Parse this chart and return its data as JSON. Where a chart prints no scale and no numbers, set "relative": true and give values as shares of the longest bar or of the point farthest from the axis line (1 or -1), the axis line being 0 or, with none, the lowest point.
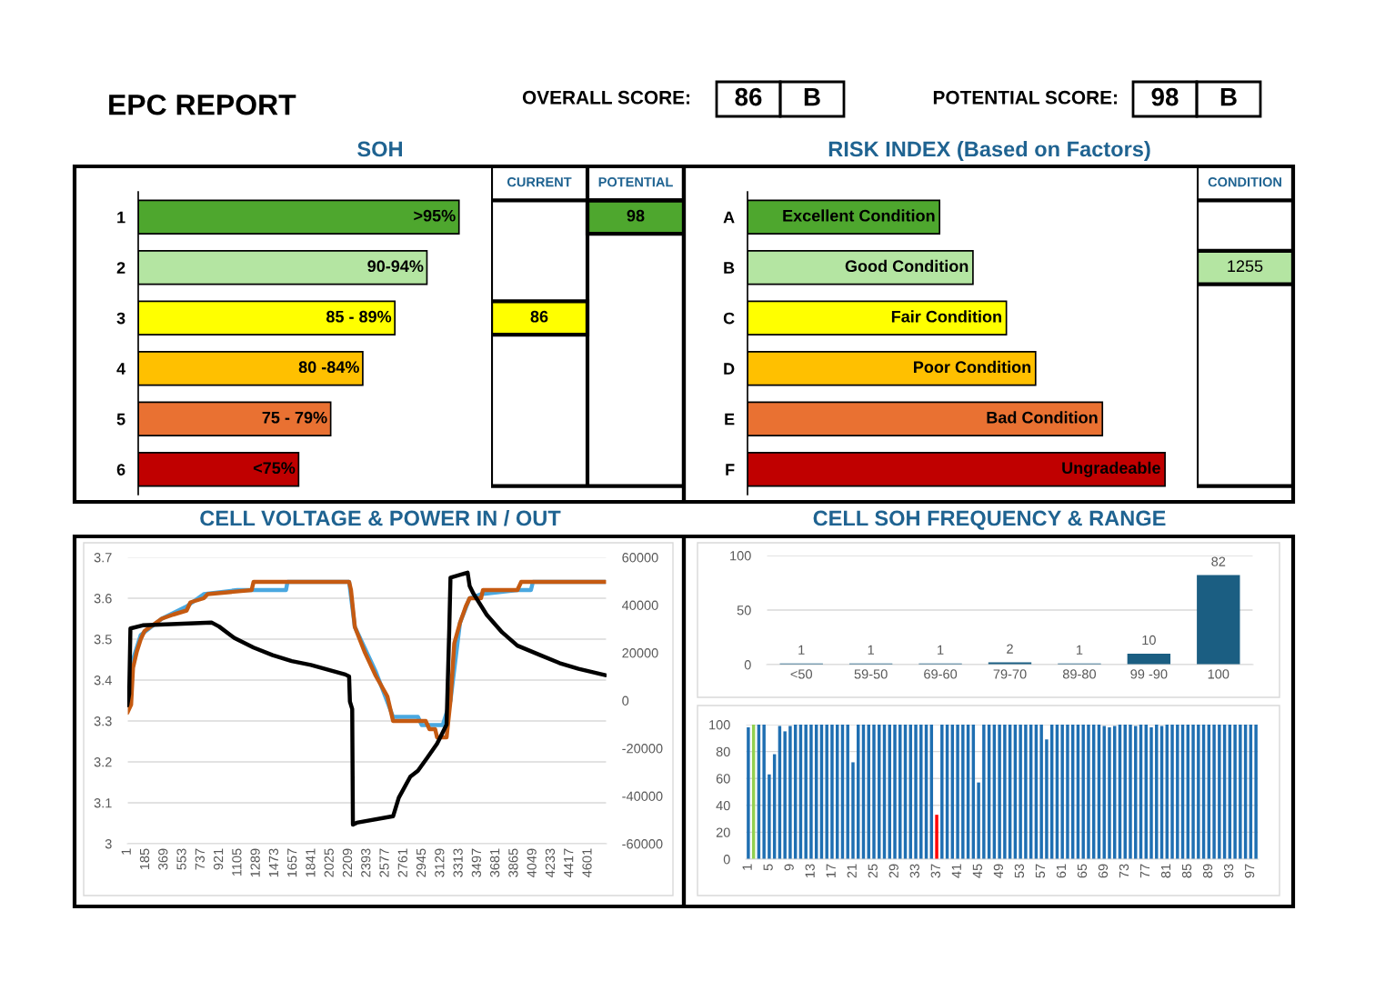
{
  "chart_data": [
    {
      "type": "other",
      "title": "EPC REPORT",
      "annotations": [
        "OVERALL SCORE:",
        "86",
        "B",
        "POTENTIAL SCORE:",
        "98",
        "B"
      ]
    },
    {
      "type": "bar",
      "title": "SOH",
      "orientation": "horizontal",
      "relative": true,
      "categories": [
        "1",
        "2",
        "3",
        "4",
        "5",
        "6"
      ],
      "values": [
        1,
        0.9,
        0.8,
        0.7,
        0.6,
        0.5
      ],
      "colors": [
        "#4ea72e",
        "#b4e5a2",
        "#ffff00",
        "#ffc000",
        "#e97132",
        "#c00000"
      ],
      "annotations": [
        {
          "text": ">95%",
          "x": 1,
          "y": "1"
        },
        {
          "text": "90-94%",
          "x": 0.9,
          "y": "2"
        },
        {
          "text": "85 - 89%",
          "x": 0.8,
          "y": "3"
        },
        {
          "text": "80 -84%",
          "x": 0.7,
          "y": "4"
        },
        {
          "text": "75 - 79%",
          "x": 0.6,
          "y": "5"
        },
        {
          "text": "<75%",
          "x": 0.5,
          "y": "6"
        }
      ]
    },
    {
      "type": "other",
      "annotations": [
        "CURRENT",
        "POTENTIAL",
        "86",
        "98"
      ]
    },
    {
      "type": "bar",
      "title": "RISK INDEX (Based on Factors)",
      "orientation": "horizontal",
      "relative": true,
      "categories": [
        "A",
        "B",
        "C",
        "D",
        "E",
        "F"
      ],
      "values": [
        0.46,
        0.54,
        0.62,
        0.69,
        0.85,
        1
      ],
      "colors": [
        "#4ea72e",
        "#b4e5a2",
        "#ffff00",
        "#ffc000",
        "#e97132",
        "#c00000"
      ],
      "annotations": [
        {
          "text": "Excellent Condition",
          "x": 0.46,
          "y": "A"
        },
        {
          "text": "Good Condition",
          "x": 0.54,
          "y": "B"
        },
        {
          "text": "Fair Condition",
          "x": 0.62,
          "y": "C"
        },
        {
          "text": "Poor Condition",
          "x": 0.69,
          "y": "D"
        },
        {
          "text": "Bad Condition",
          "x": 0.85,
          "y": "E"
        },
        {
          "text": "Ungradeable",
          "x": 1,
          "y": "F"
        }
      ]
    },
    {
      "type": "other",
      "annotations": [
        "CONDITION",
        "1255"
      ]
    },
    {
      "type": "line",
      "title": "CELL VOLTAGE & POWER IN / OUT",
      "xlim": [
        1,
        4785
      ],
      "xticks": [
        1,
        185,
        369,
        553,
        737,
        921,
        1105,
        1289,
        1473,
        1657,
        1841,
        2025,
        2209,
        2393,
        2577,
        2761,
        2945,
        3129,
        3313,
        3497,
        3681,
        3865,
        4049,
        4233,
        4417,
        4601
      ],
      "ylim": [
        3,
        3.7
      ],
      "yticks": [
        3,
        3.1,
        3.2,
        3.3,
        3.4,
        3.5,
        3.6,
        3.7
      ],
      "y2lim": [
        -60000,
        60000
      ],
      "y2ticks": [
        -60000,
        -40000,
        -20000,
        0,
        20000,
        40000,
        60000
      ],
      "grid": "y",
      "line_style": "solid",
      "series": [
        {
          "color": "#4aa8e0",
          "x": [
            1,
            58,
            135,
            345,
            593,
            764,
            1100,
            1585,
            1600,
            2215,
            2272,
            2482,
            2654,
            2902,
            2940,
            3150,
            3227,
            3322,
            3418,
            3532,
            3895,
            4030,
            4050,
            4773
          ],
          "values": [
            3.34,
            3.45,
            3.51,
            3.55,
            3.58,
            3.61,
            3.62,
            3.62,
            3.64,
            3.64,
            3.53,
            3.42,
            3.31,
            3.31,
            3.29,
            3.29,
            3.35,
            3.54,
            3.6,
            3.61,
            3.62,
            3.62,
            3.64,
            3.64
          ]
        },
        {
          "color": "#c55a11",
          "x": [
            1,
            39,
            58,
            96,
            135,
            173,
            230,
            345,
            459,
            593,
            631,
            764,
            803,
            1242,
            1261,
            2215,
            2234,
            2272,
            2368,
            2482,
            2597,
            2654,
            2979,
            3017,
            3074,
            3093,
            3188,
            3227,
            3265,
            3322,
            3380,
            3418,
            3532,
            3551,
            3895,
            3933,
            4773
          ],
          "values": [
            3.32,
            3.34,
            3.43,
            3.47,
            3.5,
            3.52,
            3.53,
            3.55,
            3.56,
            3.57,
            3.59,
            3.6,
            3.61,
            3.62,
            3.64,
            3.64,
            3.62,
            3.53,
            3.47,
            3.41,
            3.36,
            3.3,
            3.3,
            3.28,
            3.28,
            3.26,
            3.26,
            3.35,
            3.49,
            3.54,
            3.58,
            3.6,
            3.6,
            3.62,
            3.62,
            3.64,
            3.64
          ]
        },
        {
          "color": "#000000",
          "axis": "y2",
          "x": [
            1,
            20,
            32,
            154,
            841,
            917,
            1070,
            1261,
            1452,
            1642,
            1833,
            2177,
            2215,
            2223,
            2246,
            2253,
            2291,
            2654,
            2711,
            2826,
            2902,
            2998,
            3093,
            3188,
            3215,
            3227,
            3398,
            3418,
            3456,
            3589,
            3742,
            3895,
            4124,
            4315,
            4505,
            4773
          ],
          "values": [
            -2000,
            2800,
            30200,
            31500,
            32700,
            31000,
            26200,
            22200,
            19000,
            16500,
            14900,
            10900,
            10100,
            -400,
            -3600,
            -52000,
            -51200,
            -48500,
            -40700,
            -31900,
            -29400,
            -23800,
            -18100,
            -10100,
            30200,
            51500,
            53600,
            48000,
            44800,
            35900,
            28600,
            23000,
            19000,
            15700,
            13300,
            10600
          ]
        }
      ]
    },
    {
      "type": "bar",
      "title": "CELL SOH FREQUENCY & RANGE",
      "categories": [
        "<50",
        "59-50",
        "69-60",
        "79-70",
        "89-80",
        "99 -90",
        "100"
      ],
      "values": [
        1,
        1,
        1,
        2,
        1,
        10,
        82
      ],
      "color": "#1b5e82",
      "data_labels": true,
      "ylim": [
        0,
        100
      ],
      "yticks": [
        0,
        50,
        100
      ],
      "grid": "y"
    },
    {
      "type": "bar",
      "categories": [
        "1",
        null,
        null,
        null,
        "5",
        null,
        null,
        null,
        "9",
        null,
        null,
        null,
        "13",
        null,
        null,
        null,
        "17",
        null,
        null,
        null,
        "21",
        null,
        null,
        null,
        "25",
        null,
        null,
        null,
        "29",
        null,
        null,
        null,
        "33",
        null,
        null,
        null,
        "37",
        null,
        null,
        null,
        "41",
        null,
        null,
        null,
        "45",
        null,
        null,
        null,
        "49",
        null,
        null,
        null,
        "53",
        null,
        null,
        null,
        "57",
        null,
        null,
        null,
        "61",
        null,
        null,
        null,
        "65",
        null,
        null,
        null,
        "69",
        null,
        null,
        null,
        "73",
        null,
        null,
        null,
        "77",
        null,
        null,
        null,
        "81",
        null,
        null,
        null,
        "85",
        null,
        null,
        null,
        "89",
        null,
        null,
        null,
        "93",
        null,
        null,
        null,
        "97",
        null
      ],
      "values": [
        98,
        100,
        100,
        100,
        63,
        78,
        99,
        95,
        99,
        100,
        100,
        100,
        100,
        100,
        100,
        100,
        100,
        100,
        100,
        100,
        72,
        100,
        100,
        100,
        100,
        100,
        100,
        100,
        100,
        100,
        100,
        100,
        100,
        100,
        100,
        100,
        33,
        100,
        100,
        100,
        100,
        100,
        100,
        100,
        57,
        100,
        100,
        100,
        100,
        100,
        100,
        100,
        100,
        100,
        100,
        100,
        100,
        89,
        100,
        100,
        100,
        100,
        100,
        100,
        100,
        100,
        100,
        100,
        99,
        98,
        99,
        100,
        100,
        100,
        99,
        100,
        100,
        98,
        100,
        99,
        100,
        100,
        100,
        100,
        100,
        100,
        100,
        100,
        100,
        100,
        100,
        100,
        100,
        100,
        100,
        100,
        100,
        100
      ],
      "colors": [
        "#1f6fb2",
        "#92d050",
        "#1f6fb2",
        "#1f6fb2",
        "#1f6fb2",
        "#1f6fb2",
        "#1f6fb2",
        "#1f6fb2",
        "#1f6fb2",
        "#1f6fb2",
        "#1f6fb2",
        "#1f6fb2",
        "#1f6fb2",
        "#1f6fb2",
        "#1f6fb2",
        "#1f6fb2",
        "#1f6fb2",
        "#1f6fb2",
        "#1f6fb2",
        "#1f6fb2",
        "#1f6fb2",
        "#1f6fb2",
        "#1f6fb2",
        "#1f6fb2",
        "#1f6fb2",
        "#1f6fb2",
        "#1f6fb2",
        "#1f6fb2",
        "#1f6fb2",
        "#1f6fb2",
        "#1f6fb2",
        "#1f6fb2",
        "#1f6fb2",
        "#1f6fb2",
        "#1f6fb2",
        "#1f6fb2",
        "#ff0000",
        "#1f6fb2",
        "#1f6fb2",
        "#1f6fb2",
        "#1f6fb2",
        "#1f6fb2",
        "#1f6fb2",
        "#1f6fb2",
        "#1f6fb2",
        "#1f6fb2",
        "#1f6fb2",
        "#1f6fb2",
        "#1f6fb2",
        "#1f6fb2",
        "#1f6fb2",
        "#1f6fb2",
        "#1f6fb2",
        "#1f6fb2",
        "#1f6fb2",
        "#1f6fb2",
        "#1f6fb2",
        "#1f6fb2",
        "#1f6fb2",
        "#1f6fb2",
        "#1f6fb2",
        "#1f6fb2",
        "#1f6fb2",
        "#1f6fb2",
        "#1f6fb2",
        "#1f6fb2",
        "#1f6fb2",
        "#1f6fb2",
        "#1f6fb2",
        "#1f6fb2",
        "#1f6fb2",
        "#1f6fb2",
        "#1f6fb2",
        "#1f6fb2",
        "#1f6fb2",
        "#1f6fb2",
        "#1f6fb2",
        "#1f6fb2",
        "#1f6fb2",
        "#1f6fb2",
        "#1f6fb2",
        "#1f6fb2",
        "#1f6fb2",
        "#1f6fb2",
        "#1f6fb2",
        "#1f6fb2",
        "#1f6fb2",
        "#1f6fb2",
        "#1f6fb2",
        "#1f6fb2",
        "#1f6fb2",
        "#1f6fb2",
        "#1f6fb2",
        "#1f6fb2",
        "#1f6fb2",
        "#1f6fb2",
        "#1f6fb2",
        "#1f6fb2"
      ],
      "ylim": [
        0,
        100
      ],
      "yticks": [
        0,
        20,
        40,
        60,
        80,
        100
      ],
      "grid": "y"
    }
  ]
}
